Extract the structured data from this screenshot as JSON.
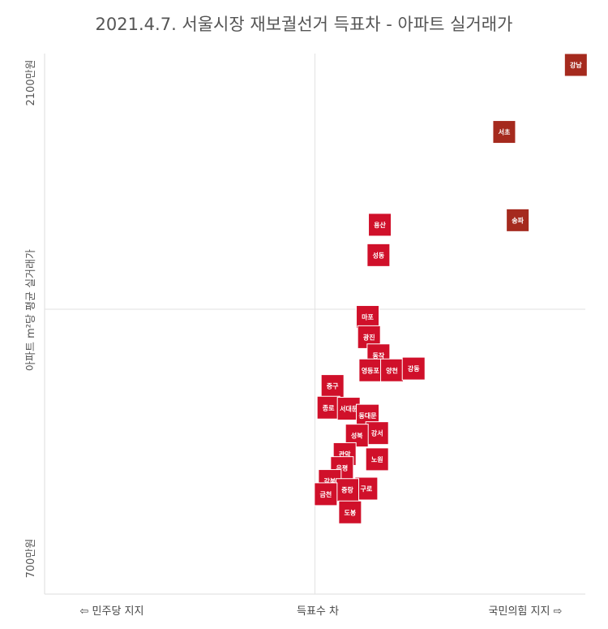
{
  "title": "2021.4.7. 서울시장 재보궐선거 득표차 - 아파트 실거래가",
  "chart_data": {
    "type": "scatter",
    "title": "2021.4.7. 서울시장 재보궐선거 득표차 - 아파트 실거래가",
    "xlabel": "득표수 차",
    "ylabel": "아파트 m²당 평균 실거래가",
    "x_left_label": "⇦ 민주당 지지",
    "x_right_label": "국민의힘 지지 ⇨",
    "y_ticks": [
      "2100만원",
      "700만원"
    ],
    "ylim": [
      700,
      2100
    ],
    "y_ref": 1400,
    "x_ref": 0,
    "xlim": [
      -100,
      100
    ],
    "points": [
      {
        "label": "강남",
        "x": 96.5,
        "y": 2100,
        "color": "#a52a1e"
      },
      {
        "label": "서초",
        "x": 70.0,
        "y": 1908,
        "color": "#a52a1e"
      },
      {
        "label": "송파",
        "x": 75.0,
        "y": 1655,
        "color": "#a52a1e"
      },
      {
        "label": "용산",
        "x": 24.0,
        "y": 1642,
        "color": "#d0102a"
      },
      {
        "label": "성동",
        "x": 23.5,
        "y": 1555,
        "color": "#d0102a"
      },
      {
        "label": "마포",
        "x": 19.5,
        "y": 1378,
        "color": "#d0102a"
      },
      {
        "label": "광진",
        "x": 20.0,
        "y": 1320,
        "color": "#d0102a"
      },
      {
        "label": "동작",
        "x": 23.5,
        "y": 1268,
        "color": "#d0102a"
      },
      {
        "label": "영등포",
        "x": 20.5,
        "y": 1225,
        "color": "#d0102a"
      },
      {
        "label": "양천",
        "x": 28.5,
        "y": 1225,
        "color": "#d0102a"
      },
      {
        "label": "강동",
        "x": 36.5,
        "y": 1230,
        "color": "#d0102a"
      },
      {
        "label": "중구",
        "x": 6.5,
        "y": 1180,
        "color": "#d0102a"
      },
      {
        "label": "종로",
        "x": 5.0,
        "y": 1118,
        "color": "#d0102a"
      },
      {
        "label": "서대문",
        "x": 12.5,
        "y": 1115,
        "color": "#d0102a"
      },
      {
        "label": "동대문",
        "x": 19.5,
        "y": 1095,
        "color": "#d0102a"
      },
      {
        "label": "강서",
        "x": 23.0,
        "y": 1045,
        "color": "#d0102a"
      },
      {
        "label": "성북",
        "x": 15.5,
        "y": 1038,
        "color": "#d0102a"
      },
      {
        "label": "관악",
        "x": 11.0,
        "y": 985,
        "color": "#d0102a"
      },
      {
        "label": "노원",
        "x": 23.0,
        "y": 970,
        "color": "#d0102a"
      },
      {
        "label": "은평",
        "x": 10.0,
        "y": 945,
        "color": "#d0102a"
      },
      {
        "label": "강북",
        "x": 5.5,
        "y": 908,
        "color": "#d0102a"
      },
      {
        "label": "구로",
        "x": 19.0,
        "y": 886,
        "color": "#d0102a"
      },
      {
        "label": "중랑",
        "x": 12.0,
        "y": 882,
        "color": "#d0102a"
      },
      {
        "label": "금천",
        "x": 4.0,
        "y": 870,
        "color": "#d0102a"
      },
      {
        "label": "도봉",
        "x": 13.0,
        "y": 818,
        "color": "#d0102a"
      }
    ]
  }
}
